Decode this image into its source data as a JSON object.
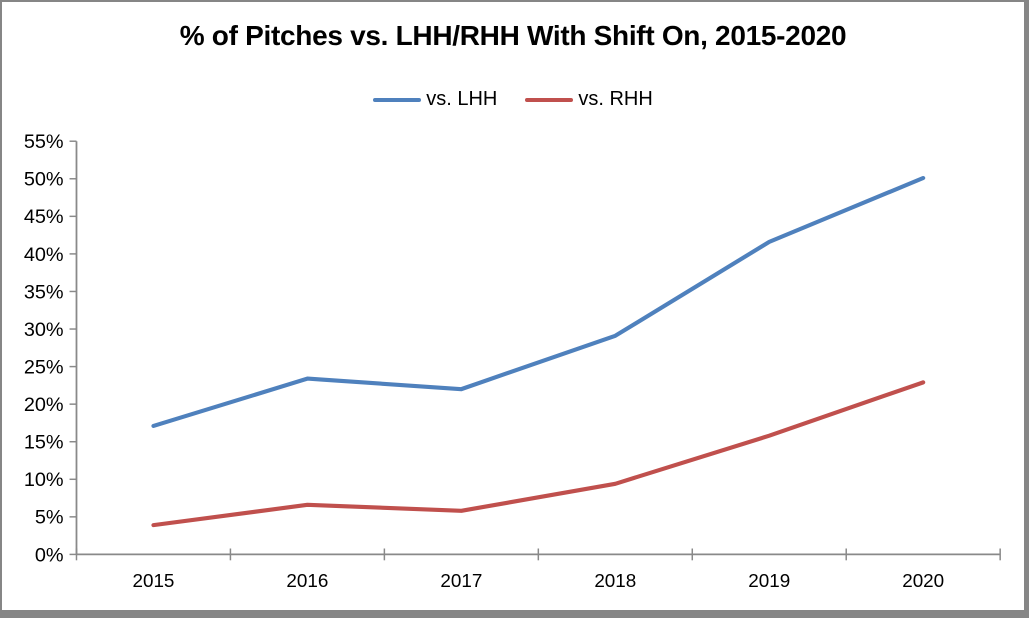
{
  "frame": {
    "background": "#FFFFFF",
    "border_color": "#868686"
  },
  "chart_data": {
    "type": "line",
    "title": "% of Pitches vs. LHH/RHH With Shift On, 2015-2020",
    "xlabel": "",
    "ylabel": "",
    "categories": [
      "2015",
      "2016",
      "2017",
      "2018",
      "2019",
      "2020"
    ],
    "series": [
      {
        "name": "vs. LHH",
        "color": "#4F81BD",
        "values": [
          17.1,
          23.4,
          22.0,
          29.1,
          41.6,
          50.1
        ]
      },
      {
        "name": "vs. RHH",
        "color": "#C0504D",
        "values": [
          3.9,
          6.6,
          5.8,
          9.4,
          15.8,
          22.9
        ]
      }
    ],
    "ylim": [
      0,
      55
    ],
    "ytick_step": 5,
    "ytick_labels": [
      "0%",
      "5%",
      "10%",
      "15%",
      "20%",
      "25%",
      "30%",
      "35%",
      "40%",
      "45%",
      "50%",
      "55%"
    ],
    "grid": false,
    "legend_position": "top-center",
    "axis_color": "#898989",
    "tick_label_color": "#000000"
  }
}
